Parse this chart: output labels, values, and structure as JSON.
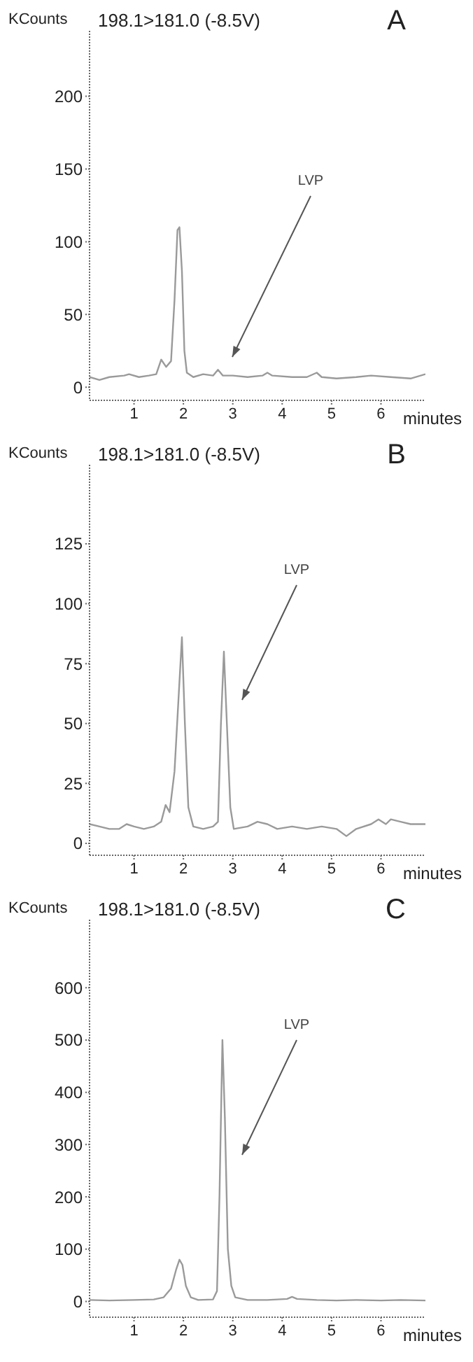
{
  "chart_data": [
    {
      "type": "line",
      "title": "198.1>181.0 (-8.5V)",
      "xlabel": "minutes",
      "ylabel": "KCounts",
      "annotations": [
        "A",
        "LVP"
      ],
      "xlim": [
        0.1,
        6.9
      ],
      "xticks": [
        1,
        2,
        3,
        4,
        5,
        6
      ],
      "ylim": [
        -9,
        245
      ],
      "yticks": [
        0,
        50,
        100,
        150,
        200
      ],
      "series": [
        {
          "color": "#9a9a9a",
          "x": [
            0.1,
            0.3,
            0.5,
            0.8,
            0.9,
            1.1,
            1.3,
            1.45,
            1.55,
            1.65,
            1.75,
            1.82,
            1.88,
            1.92,
            1.97,
            2.02,
            2.07,
            2.2,
            2.4,
            2.6,
            2.7,
            2.8,
            3.0,
            3.3,
            3.6,
            3.7,
            3.8,
            4.2,
            4.5,
            4.7,
            4.8,
            5.1,
            5.5,
            5.8,
            6.2,
            6.6,
            6.9
          ],
          "values": [
            7,
            5,
            7,
            8,
            9,
            7,
            8,
            9,
            19,
            14,
            18,
            60,
            108,
            110,
            80,
            25,
            10,
            7,
            9,
            8,
            12,
            8,
            8,
            7,
            8,
            10,
            8,
            7,
            7,
            10,
            7,
            6,
            7,
            8,
            7,
            6,
            9
          ]
        }
      ]
    },
    {
      "type": "line",
      "title": "198.1>181.0 (-8.5V)",
      "xlabel": "minutes",
      "ylabel": "KCounts",
      "annotations": [
        "B",
        "LVP"
      ],
      "xlim": [
        0.1,
        6.9
      ],
      "xticks": [
        1,
        2,
        3,
        4,
        5,
        6
      ],
      "ylim": [
        -5,
        158
      ],
      "yticks": [
        0,
        25,
        50,
        75,
        100,
        125
      ],
      "series": [
        {
          "color": "#9a9a9a",
          "x": [
            0.1,
            0.3,
            0.5,
            0.7,
            0.85,
            1.0,
            1.2,
            1.4,
            1.55,
            1.64,
            1.72,
            1.82,
            1.9,
            1.97,
            2.03,
            2.1,
            2.2,
            2.4,
            2.6,
            2.7,
            2.76,
            2.82,
            2.88,
            2.95,
            3.02,
            3.3,
            3.5,
            3.7,
            3.9,
            4.2,
            4.5,
            4.8,
            5.1,
            5.3,
            5.5,
            5.8,
            5.95,
            6.1,
            6.2,
            6.4,
            6.6,
            6.9
          ],
          "values": [
            8,
            7,
            6,
            6,
            8,
            7,
            6,
            7,
            9,
            16,
            13,
            30,
            60,
            86,
            50,
            15,
            7,
            6,
            7,
            9,
            50,
            80,
            50,
            15,
            6,
            7,
            9,
            8,
            6,
            7,
            6,
            7,
            6,
            3,
            6,
            8,
            10,
            8,
            10,
            9,
            8,
            8
          ]
        }
      ]
    },
    {
      "type": "line",
      "title": "198.1>181.0 (-8.5V)",
      "xlabel": "minutes",
      "ylabel": "KCounts",
      "annotations": [
        "C",
        "LVP"
      ],
      "xlim": [
        0.1,
        6.9
      ],
      "xticks": [
        1,
        2,
        3,
        4,
        5,
        6
      ],
      "ylim": [
        -30,
        730
      ],
      "yticks": [
        0,
        100,
        200,
        300,
        400,
        500,
        600
      ],
      "series": [
        {
          "color": "#9a9a9a",
          "x": [
            0.1,
            0.5,
            1.0,
            1.4,
            1.6,
            1.75,
            1.85,
            1.92,
            1.98,
            2.05,
            2.15,
            2.3,
            2.6,
            2.68,
            2.73,
            2.79,
            2.84,
            2.9,
            2.97,
            3.05,
            3.3,
            3.7,
            4.1,
            4.2,
            4.3,
            4.7,
            5.1,
            5.5,
            6.0,
            6.4,
            6.9
          ],
          "values": [
            3,
            2,
            3,
            4,
            8,
            25,
            60,
            80,
            70,
            30,
            8,
            3,
            4,
            20,
            200,
            500,
            350,
            100,
            30,
            8,
            3,
            3,
            5,
            9,
            5,
            3,
            2,
            3,
            2,
            3,
            2
          ]
        }
      ]
    }
  ]
}
